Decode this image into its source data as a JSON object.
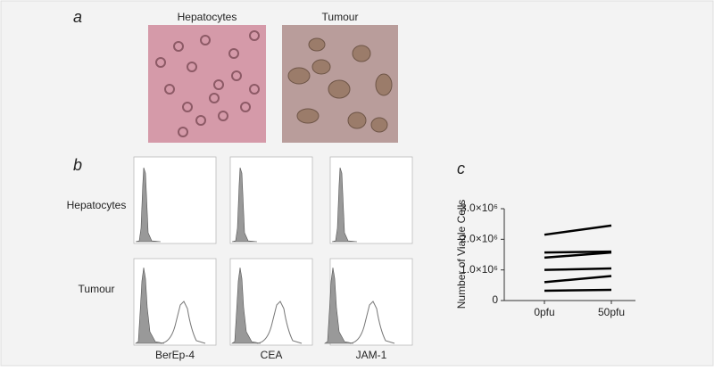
{
  "panel_a": {
    "letter": "a",
    "images": [
      "Hepatocytes",
      "Tumour"
    ]
  },
  "panel_b": {
    "letter": "b",
    "rows": [
      "Hepatocytes",
      "Tumour"
    ],
    "columns": [
      "BerEp-4",
      "CEA",
      "JAM-1"
    ]
  },
  "chart_data": {
    "type": "line",
    "panel_label": "c",
    "y_label": "Number of Viable Cells",
    "categories": [
      "0pfu",
      "50pfu"
    ],
    "ylim": [
      0,
      3000000
    ],
    "yticks": [
      0,
      {
        "value": 1000000,
        "label": "1.0×10⁶"
      },
      {
        "value": 2000000,
        "label": "2.0×10⁶"
      },
      {
        "value": 3000000,
        "label": "3.0×10⁶"
      }
    ],
    "series": [
      {
        "color": "#000000",
        "values": [
          2150000,
          2450000
        ]
      },
      {
        "color": "#000000",
        "values": [
          1570000,
          1600000
        ]
      },
      {
        "color": "#000000",
        "values": [
          1400000,
          1570000
        ]
      },
      {
        "color": "#000000",
        "values": [
          1000000,
          1050000
        ]
      },
      {
        "color": "#000000",
        "values": [
          600000,
          800000
        ]
      },
      {
        "color": "#000000",
        "values": [
          320000,
          350000
        ]
      }
    ]
  }
}
